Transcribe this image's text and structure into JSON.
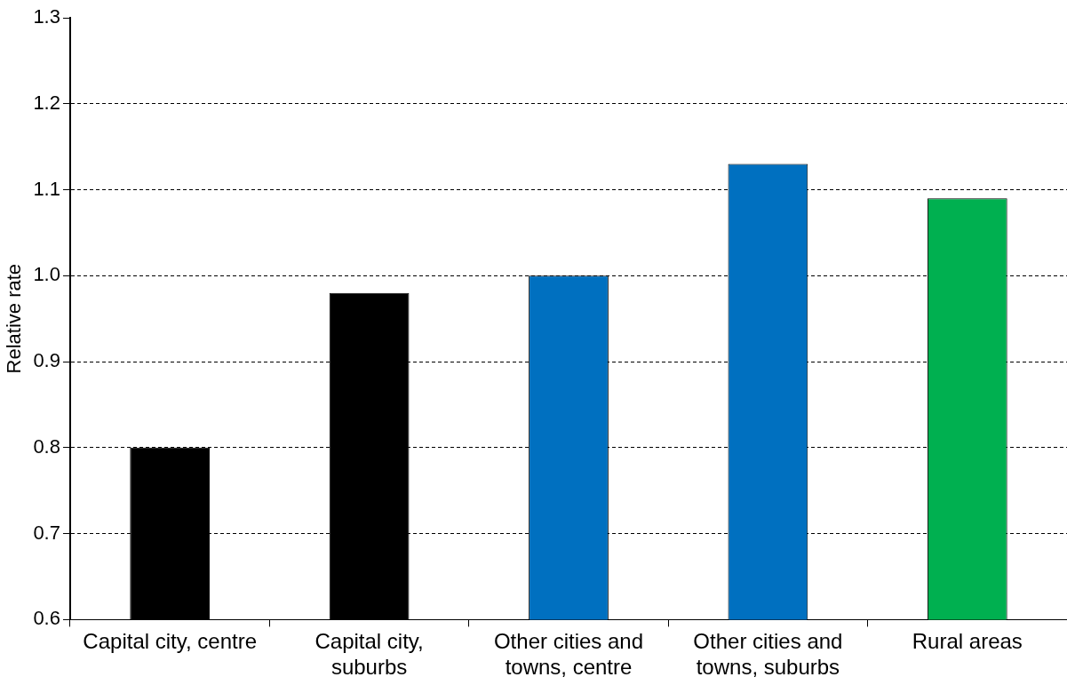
{
  "chart_data": {
    "type": "bar",
    "ylabel": "Relative rate",
    "categories": [
      "Capital city, centre",
      "Capital city, suburbs",
      "Other cities and towns, centre",
      "Other cities and towns, suburbs",
      "Rural areas"
    ],
    "values": [
      0.8,
      0.98,
      1.0,
      1.13,
      1.09
    ],
    "colors": [
      "#000000",
      "#000000",
      "#0070c0",
      "#0070c0",
      "#00b050"
    ],
    "ylim": [
      0.6,
      1.3
    ],
    "yticks": [
      0.6,
      0.7,
      0.8,
      0.9,
      {
        "value": 1,
        "label": "1.0"
      },
      1.1,
      1.2,
      1.3
    ],
    "grid": "y",
    "legend": false
  }
}
